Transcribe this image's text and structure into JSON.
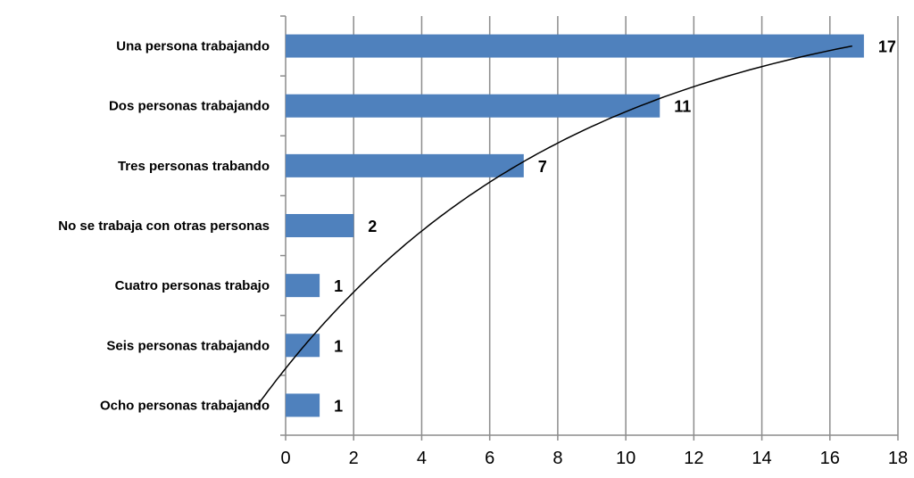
{
  "chart_data": {
    "type": "bar",
    "orientation": "horizontal",
    "categories": [
      "Una persona trabajando",
      "Dos personas trabajando",
      "Tres personas trabando",
      "No se trabaja con otras personas",
      "Cuatro personas trabajo",
      "Seis personas trabajando",
      "Ocho personas trabajando"
    ],
    "values": [
      17,
      11,
      7,
      2,
      1,
      1,
      1
    ],
    "data_labels": [
      "17",
      "11",
      "7",
      "2",
      "1",
      "1",
      "1"
    ],
    "xlim": [
      0,
      18
    ],
    "x_ticks": [
      0,
      2,
      4,
      6,
      8,
      10,
      12,
      14,
      16,
      18
    ],
    "x_tick_labels": [
      "0",
      "2",
      "4",
      "6",
      "8",
      "10",
      "12",
      "14",
      "16",
      "18"
    ],
    "grid": "vertical",
    "legend": "none",
    "trendline": "logarithmic",
    "colors": {
      "bar": "#4f81bd",
      "grid": "#8c8c8c",
      "trendline": "#000000"
    }
  }
}
